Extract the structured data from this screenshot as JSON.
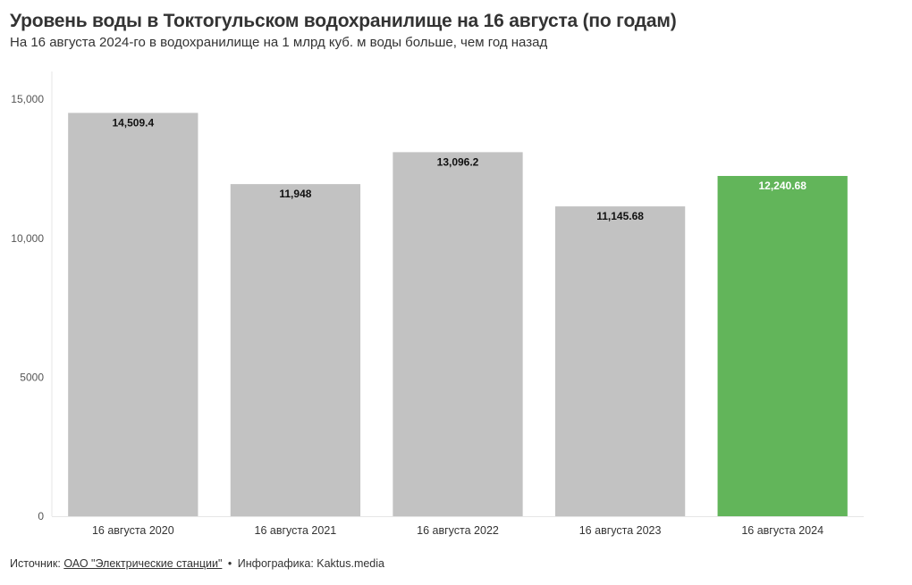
{
  "header": {
    "title": "Уровень воды в Токтогульском водохранилище на 16 августа (по годам)",
    "subtitle": "На 16 августа 2024-го в водохранилище на 1 млрд куб. м воды больше, чем год назад"
  },
  "footer": {
    "source_prefix": "Источник:",
    "source_link": "ОАО \"Электрические станции\"",
    "separator": "•",
    "credit": "Инфографика: Kaktus.media"
  },
  "colors": {
    "default_bar": "#c2c2c2",
    "highlight_bar": "#62b55a",
    "label_dark": "#111111",
    "label_light": "#ffffff",
    "axis_text": "#555555"
  },
  "chart_data": {
    "type": "bar",
    "categories": [
      "16 августа 2020",
      "16 августа 2021",
      "16 августа 2022",
      "16 августа 2023",
      "16 августа 2024"
    ],
    "values": [
      14509.4,
      11948,
      13096.2,
      11145.68,
      12240.68
    ],
    "value_labels": [
      "14,509.4",
      "11,948",
      "13,096.2",
      "11,145.68",
      "12,240.68"
    ],
    "highlight_index": 4,
    "title": "Уровень воды в Токтогульском водохранилище на 16 августа (по годам)",
    "subtitle": "На 16 августа 2024-го в водохранилище на 1 млрд куб. м воды больше, чем год назад",
    "xlabel": "",
    "ylabel": "",
    "ylim": [
      0,
      16000
    ],
    "yticks": [
      0,
      5000,
      10000,
      15000
    ],
    "ytick_labels": [
      "0",
      "5000",
      "10,000",
      "15,000"
    ],
    "grid": false,
    "legend": "none"
  }
}
